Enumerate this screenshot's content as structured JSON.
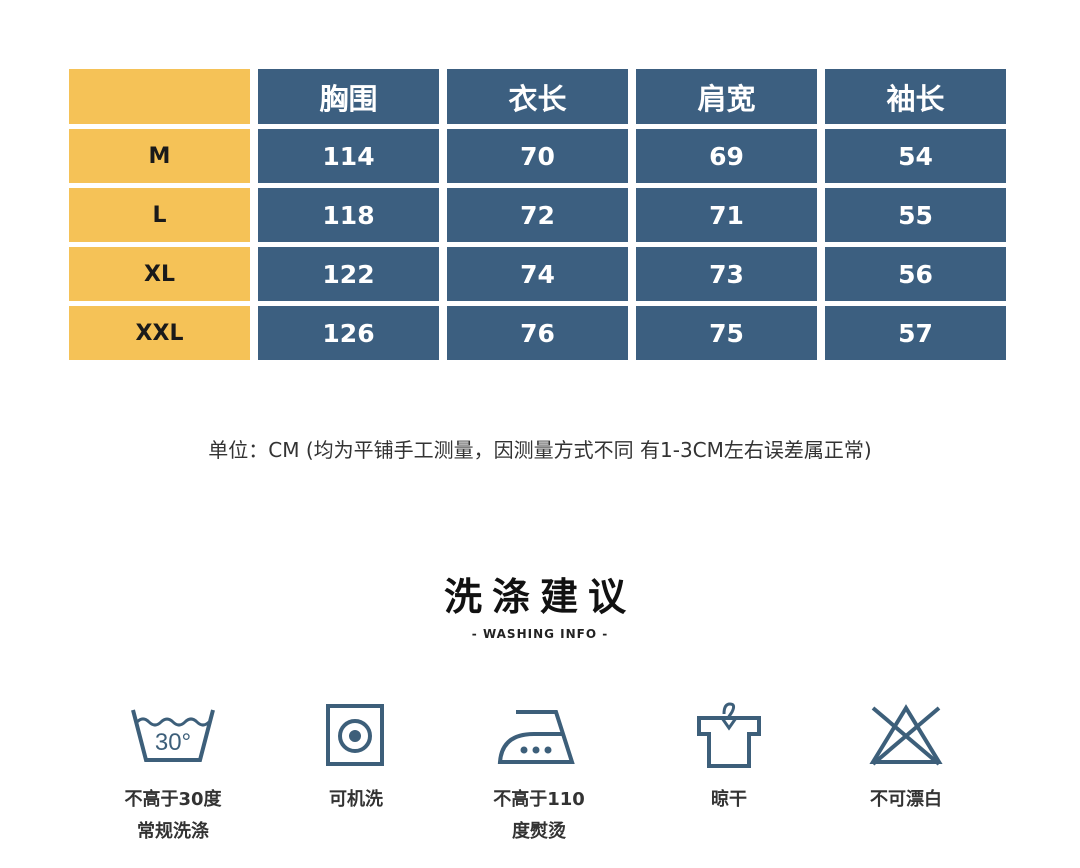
{
  "table": {
    "headers": [
      "",
      "胸围",
      "衣长",
      "肩宽",
      "袖长"
    ],
    "rows": [
      {
        "size": "M",
        "values": [
          "114",
          "70",
          "69",
          "54"
        ]
      },
      {
        "size": "L",
        "values": [
          "118",
          "72",
          "71",
          "55"
        ]
      },
      {
        "size": "XL",
        "values": [
          "122",
          "74",
          "73",
          "56"
        ]
      },
      {
        "size": "XXL",
        "values": [
          "126",
          "76",
          "75",
          "57"
        ]
      }
    ]
  },
  "note": "单位：CM  (均为平铺手工测量，因测量方式不同 有1-3CM左右误差属正常)",
  "washing": {
    "title": "洗涤建议",
    "subtitle": "- WASHING INFO -",
    "items": [
      {
        "icon": "wash-30-icon",
        "temp": "30°",
        "line1": "不高于30度",
        "line2": "常规洗涤"
      },
      {
        "icon": "machine-wash-icon",
        "line1": "可机洗",
        "line2": ""
      },
      {
        "icon": "iron-icon",
        "line1": "不高于110",
        "line2": "度熨烫"
      },
      {
        "icon": "hang-dry-icon",
        "line1": "晾干",
        "line2": ""
      },
      {
        "icon": "no-bleach-icon",
        "line1": "不可漂白",
        "line2": ""
      }
    ]
  },
  "colors": {
    "yellow": "#f5c257",
    "blue": "#3c5f80",
    "icon": "#3d5f7a"
  }
}
